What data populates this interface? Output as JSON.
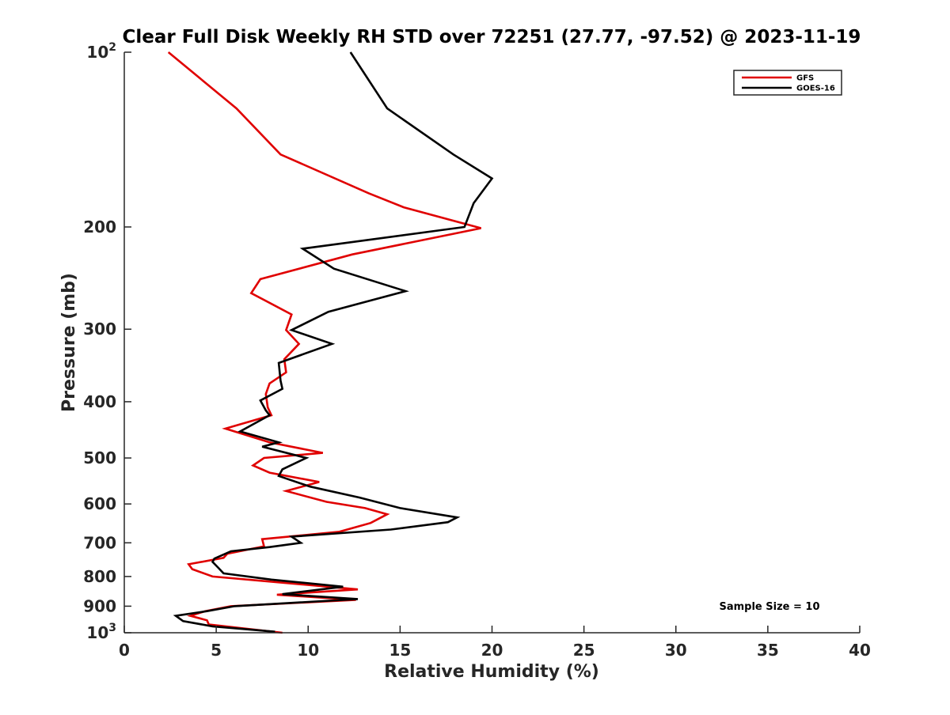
{
  "chart_data": {
    "type": "line",
    "title": "Clear Full Disk Weekly RH STD over 72251 (27.77, -97.52) @ 2023-11-19",
    "xlabel": "Relative Humidity (%)",
    "ylabel": "Pressure (mb)",
    "xlim": [
      0,
      40
    ],
    "ylim": [
      100,
      1000
    ],
    "y_scale": "log",
    "y_reversed": true,
    "x_ticks": [
      "0",
      "5",
      "10",
      "15",
      "20",
      "25",
      "30",
      "35",
      "40"
    ],
    "x_tick_values": [
      0,
      5,
      10,
      15,
      20,
      25,
      30,
      35,
      40
    ],
    "y_ticks": [
      {
        "value": 100,
        "base": "10",
        "exp": "2"
      },
      {
        "value": 200,
        "label": "200"
      },
      {
        "value": 300,
        "label": "300"
      },
      {
        "value": 400,
        "label": "400"
      },
      {
        "value": 500,
        "label": "500"
      },
      {
        "value": 600,
        "label": "600"
      },
      {
        "value": 700,
        "label": "700"
      },
      {
        "value": 800,
        "label": "800"
      },
      {
        "value": 900,
        "label": "900"
      },
      {
        "value": 1000,
        "base": "10",
        "exp": "3"
      }
    ],
    "grid": false,
    "legend_position": "top-right",
    "annotation": "Sample Size = 10",
    "series": [
      {
        "name": "GFS",
        "color": "#e00000",
        "points": [
          [
            2.4,
            100
          ],
          [
            6.1,
            125
          ],
          [
            8.5,
            150
          ],
          [
            13.3,
            175
          ],
          [
            15.2,
            185
          ],
          [
            19.4,
            201
          ],
          [
            12.4,
            223
          ],
          [
            7.4,
            246
          ],
          [
            6.9,
            260
          ],
          [
            9.1,
            283
          ],
          [
            8.8,
            301
          ],
          [
            9.5,
            318
          ],
          [
            8.7,
            338
          ],
          [
            8.8,
            356
          ],
          [
            7.9,
            372
          ],
          [
            7.7,
            388
          ],
          [
            7.8,
            409
          ],
          [
            8.0,
            422
          ],
          [
            5.5,
            445
          ],
          [
            7.9,
            470
          ],
          [
            10.8,
            490
          ],
          [
            7.6,
            500
          ],
          [
            7.0,
            515
          ],
          [
            7.9,
            530
          ],
          [
            10.6,
            550
          ],
          [
            8.8,
            570
          ],
          [
            11.0,
            595
          ],
          [
            13.1,
            610
          ],
          [
            14.3,
            625
          ],
          [
            13.4,
            647
          ],
          [
            11.7,
            670
          ],
          [
            7.5,
            690
          ],
          [
            7.6,
            710
          ],
          [
            5.6,
            731
          ],
          [
            5.4,
            743
          ],
          [
            3.5,
            762
          ],
          [
            3.7,
            777
          ],
          [
            4.8,
            800
          ],
          [
            8.6,
            820
          ],
          [
            12.7,
            842
          ],
          [
            8.3,
            860
          ],
          [
            12.6,
            878
          ],
          [
            5.8,
            900
          ],
          [
            4.4,
            918
          ],
          [
            3.6,
            935
          ],
          [
            4.5,
            952
          ],
          [
            4.6,
            968
          ],
          [
            8.6,
            1000
          ]
        ]
      },
      {
        "name": "GOES-16",
        "color": "#000000",
        "points": [
          [
            12.3,
            100
          ],
          [
            14.3,
            125
          ],
          [
            17.9,
            150
          ],
          [
            20.0,
            165
          ],
          [
            19.0,
            182
          ],
          [
            18.5,
            200
          ],
          [
            9.7,
            218
          ],
          [
            11.4,
            236
          ],
          [
            15.3,
            258
          ],
          [
            11.1,
            280
          ],
          [
            9.1,
            301
          ],
          [
            11.3,
            318
          ],
          [
            8.4,
            343
          ],
          [
            8.5,
            368
          ],
          [
            8.6,
            380
          ],
          [
            7.4,
            398
          ],
          [
            7.7,
            414
          ],
          [
            7.9,
            422
          ],
          [
            6.3,
            450
          ],
          [
            8.4,
            470
          ],
          [
            7.5,
            478
          ],
          [
            9.9,
            500
          ],
          [
            8.6,
            523
          ],
          [
            8.4,
            537
          ],
          [
            10.1,
            560
          ],
          [
            12.8,
            585
          ],
          [
            15.0,
            610
          ],
          [
            18.1,
            633
          ],
          [
            17.6,
            645
          ],
          [
            14.5,
            664
          ],
          [
            9.1,
            683
          ],
          [
            9.6,
            700
          ],
          [
            7.9,
            712
          ],
          [
            5.8,
            724
          ],
          [
            4.9,
            745
          ],
          [
            4.8,
            755
          ],
          [
            5.1,
            772
          ],
          [
            5.4,
            790
          ],
          [
            8.0,
            810
          ],
          [
            11.9,
            833
          ],
          [
            8.6,
            858
          ],
          [
            12.7,
            875
          ],
          [
            6.0,
            900
          ],
          [
            4.5,
            918
          ],
          [
            2.8,
            935
          ],
          [
            3.2,
            955
          ],
          [
            4.8,
            975
          ],
          [
            8.2,
            996
          ]
        ]
      }
    ]
  }
}
